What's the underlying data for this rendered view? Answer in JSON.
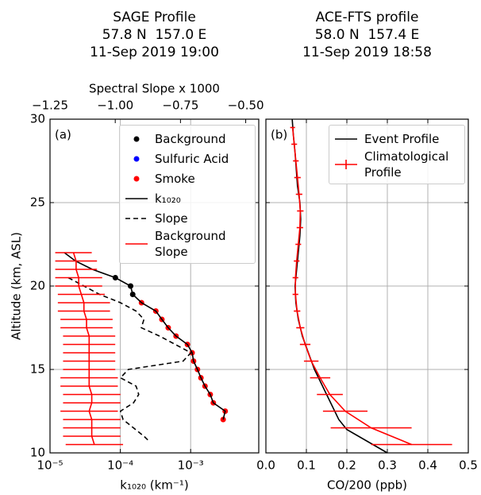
{
  "chart_data": [
    {
      "type": "line",
      "title": [
        "SAGE Profile",
        "57.8 N  157.0 E",
        "11-Sep 2019 19:00"
      ],
      "panel_label": "(a)",
      "xlabel": "k₁₀₂₀ (km⁻¹)",
      "x2label": "Spectral Slope x 1000",
      "ylabel": "Altitude (km, ASL)",
      "xscale": "log",
      "xlim": [
        1e-05,
        0.0093
      ],
      "xticks": [
        {
          "value": 1e-05,
          "label": "10⁻⁵"
        },
        {
          "value": 0.0001,
          "label": "10⁻⁴"
        },
        {
          "value": 0.001,
          "label": "10⁻³"
        }
      ],
      "x2lim": [
        -1.25,
        -0.45
      ],
      "x2ticks": [
        {
          "value": -1.25,
          "label": "−1.25"
        },
        {
          "value": -1.0,
          "label": "−1.00"
        },
        {
          "value": -0.75,
          "label": "−0.75"
        },
        {
          "value": -0.5,
          "label": "−0.50"
        }
      ],
      "ylim": [
        10,
        30
      ],
      "yticks": [
        10,
        15,
        20,
        25,
        30
      ],
      "ytick_labels": true,
      "grid": true,
      "legend": "upper right",
      "series": [
        {
          "name": "Background",
          "kind": "scatter",
          "color": "#000000",
          "x": [
            8.5e-05,
            0.00014,
            0.00015
          ],
          "y": [
            20.5,
            20,
            19.5
          ]
        },
        {
          "name": "Sulfuric Acid",
          "kind": "scatter",
          "color": "#0000ff",
          "x": [],
          "y": []
        },
        {
          "name": "Smoke",
          "kind": "scatter",
          "color": "#ff0000",
          "x": [
            0.0002,
            0.00032,
            0.00039,
            0.00048,
            0.00062,
            0.0009,
            0.00105,
            0.0011,
            0.00125,
            0.0014,
            0.0016,
            0.0019,
            0.0021,
            0.0031,
            0.0029
          ],
          "y": [
            19,
            18.5,
            18,
            17.5,
            17,
            16.5,
            16,
            15.5,
            15,
            14.5,
            14,
            13.5,
            13,
            12.5,
            12
          ]
        },
        {
          "name": "k₁₀₂₀",
          "kind": "line",
          "color": "#000000",
          "style": "solid",
          "x": [
            1.6e-05,
            2.3e-05,
            4e-05,
            8.5e-05,
            0.00014,
            0.00015,
            0.0002,
            0.00032,
            0.00039,
            0.00048,
            0.00062,
            0.0009,
            0.00105,
            0.0011,
            0.00125,
            0.0014,
            0.0016,
            0.0019,
            0.0021,
            0.0031,
            0.0029
          ],
          "y": [
            22,
            21.5,
            21,
            20.5,
            20,
            19.5,
            19,
            18.5,
            18,
            17.5,
            17,
            16.5,
            16,
            15.5,
            15,
            14.5,
            14,
            13.5,
            13,
            12.5,
            12
          ]
        },
        {
          "name": "Slope",
          "kind": "line",
          "color": "#000000",
          "style": "dashed",
          "axis": "x2",
          "x": [
            -1.18,
            -1.12,
            -1.06,
            -0.98,
            -0.92,
            -0.89,
            -0.9,
            -0.83,
            -0.77,
            -0.71,
            -0.74,
            -0.95,
            -0.98,
            -0.92,
            -0.91,
            -0.93,
            -0.98,
            -0.97,
            -0.93,
            -0.89,
            -0.87
          ],
          "y": [
            20.5,
            20,
            19.5,
            19,
            18.5,
            18,
            17.5,
            17,
            16.5,
            16,
            15.5,
            15,
            14.5,
            14,
            13.5,
            13,
            12.5,
            12,
            11.5,
            11,
            10.7
          ]
        },
        {
          "name": "Background Slope",
          "kind": "errorbar",
          "color": "#ff0000",
          "axis": "x2",
          "x": [
            -1.16,
            -1.15,
            -1.15,
            -1.14,
            -1.14,
            -1.13,
            -1.12,
            -1.12,
            -1.11,
            -1.11,
            -1.1,
            -1.1,
            -1.1,
            -1.1,
            -1.1,
            -1.1,
            -1.1,
            -1.09,
            -1.09,
            -1.1,
            -1.09,
            -1.09,
            -1.09,
            -1.08
          ],
          "xerr": [
            0.07,
            0.08,
            0.08,
            0.09,
            0.09,
            0.09,
            0.1,
            0.1,
            0.1,
            0.1,
            0.1,
            0.1,
            0.1,
            0.1,
            0.1,
            0.11,
            0.11,
            0.11,
            0.11,
            0.11,
            0.11,
            0.11,
            0.11,
            0.11
          ],
          "y": [
            22,
            21.5,
            21,
            20.5,
            20,
            19.5,
            19,
            18.5,
            18,
            17.5,
            17,
            16.5,
            16,
            15.5,
            15,
            14.5,
            14,
            13.5,
            13,
            12.5,
            12,
            11.5,
            11,
            10.5
          ]
        }
      ]
    },
    {
      "type": "line",
      "title": [
        "ACE-FTS profile",
        "58.0 N  157.4 E",
        "11-Sep 2019 18:58"
      ],
      "panel_label": "(b)",
      "xlabel": "CO/200 (ppb)",
      "xlim": [
        0,
        0.5
      ],
      "xticks": [
        {
          "value": 0,
          "label": "0.0"
        },
        0.1,
        0.2,
        0.3,
        0.4,
        0.5
      ],
      "ylim": [
        10,
        30
      ],
      "yticks": [
        10,
        15,
        20,
        25,
        30
      ],
      "ytick_labels": false,
      "grid": true,
      "legend": "upper right",
      "series": [
        {
          "name": "Event Profile",
          "kind": "line",
          "color": "#000000",
          "style": "solid",
          "x": [
            0.065,
            0.068,
            0.072,
            0.075,
            0.078,
            0.084,
            0.086,
            0.084,
            0.08,
            0.076,
            0.072,
            0.074,
            0.08,
            0.09,
            0.105,
            0.12,
            0.14,
            0.16,
            0.18,
            0.2,
            0.3
          ],
          "y": [
            30,
            29,
            28,
            27,
            26,
            25,
            24,
            23,
            22,
            21,
            20,
            19,
            18,
            17,
            16,
            15,
            14,
            13,
            12,
            11.4,
            10
          ]
        },
        {
          "name": "Climatological Profile",
          "kind": "errorbar",
          "color": "#ff0000",
          "x": [
            0.066,
            0.07,
            0.074,
            0.078,
            0.082,
            0.085,
            0.084,
            0.08,
            0.076,
            0.073,
            0.073,
            0.077,
            0.085,
            0.097,
            0.112,
            0.134,
            0.158,
            0.196,
            0.26,
            0.36
          ],
          "xerr": [
            0.006,
            0.007,
            0.007,
            0.008,
            0.008,
            0.008,
            0.008,
            0.007,
            0.007,
            0.007,
            0.007,
            0.008,
            0.01,
            0.013,
            0.018,
            0.025,
            0.032,
            0.055,
            0.1,
            0.1
          ],
          "y": [
            29.5,
            28.5,
            27.5,
            26.5,
            25.5,
            24.5,
            23.5,
            22.5,
            21.5,
            20.5,
            19.5,
            18.5,
            17.5,
            16.5,
            15.5,
            14.5,
            13.5,
            12.5,
            11.5,
            10.5
          ]
        }
      ]
    }
  ]
}
